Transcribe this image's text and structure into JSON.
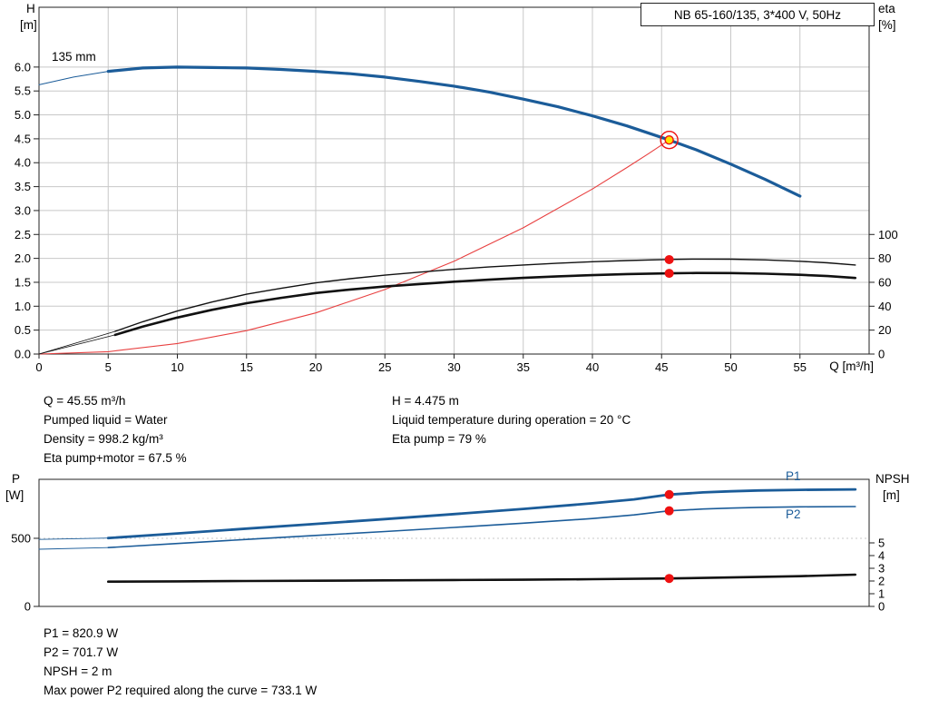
{
  "labels": {
    "h_axis_top": "H",
    "h_axis_unit": "[m]",
    "eta_axis_top": "eta",
    "eta_axis_unit": "[%]",
    "q_axis": "Q [m³/h]",
    "impeller": "135 mm",
    "p_axis_top": "P",
    "p_axis_unit": "[W]",
    "npsh_axis_top": "NPSH",
    "npsh_axis_unit": "[m]",
    "p1": "P1",
    "p2": "P2"
  },
  "info_top": {
    "col1": [
      "Q = 45.55 m³/h",
      "Pumped liquid = Water",
      "Density = 998.2 kg/m³",
      "Eta pump+motor = 67.5 %"
    ],
    "col2": [
      "H = 4.475 m",
      "Liquid temperature during operation = 20 °C",
      "Eta pump = 79 %"
    ]
  },
  "info_bottom": [
    "P1 = 820.9 W",
    "P2 = 701.7 W",
    "NPSH = 2 m",
    "Max power P2 required along the curve = 733.1 W"
  ],
  "colors": {
    "curve_blue": "#1b5c99",
    "curve_red": "#e84040",
    "curve_black": "#111111",
    "marker_red": "#ee1111",
    "marker_yellow": "#ffe000",
    "grid": "#c8c8c8",
    "frame": "#222222"
  },
  "chart_data": [
    {
      "type": "line",
      "name": "head-eta-chart",
      "title": "NB 65-160/135, 3*400 V, 50Hz",
      "show_v_grid": true,
      "show_h_grid": true,
      "show_x_labels": true,
      "x": {
        "label": "Q [m³/h]",
        "min": 0,
        "max": 60,
        "ticks": [
          0,
          5,
          10,
          15,
          20,
          25,
          30,
          35,
          40,
          45,
          50,
          55
        ]
      },
      "y_left": {
        "label": "H [m]",
        "min": 0,
        "max": 7.25,
        "decimals": 1,
        "ticks": [
          0,
          0.5,
          1,
          1.5,
          2,
          2.5,
          3,
          3.5,
          4,
          4.5,
          5,
          5.5,
          6
        ]
      },
      "y_right": {
        "label": "eta [%]",
        "h_per_unit": 0.025,
        "ticks": [
          0,
          20,
          40,
          60,
          80,
          100
        ]
      },
      "series": [
        {
          "name": "head-curve-leader",
          "axis": "left",
          "color": "blue",
          "width": 1,
          "points": [
            [
              0,
              5.63
            ],
            [
              2.5,
              5.79
            ],
            [
              5,
              5.91
            ]
          ]
        },
        {
          "name": "head-curve-135mm",
          "axis": "left",
          "color": "blue",
          "width": 3.2,
          "points": [
            [
              5,
              5.91
            ],
            [
              7.5,
              5.98
            ],
            [
              10,
              6.0
            ],
            [
              12.5,
              5.99
            ],
            [
              15,
              5.98
            ],
            [
              17.5,
              5.95
            ],
            [
              20,
              5.91
            ],
            [
              22.5,
              5.86
            ],
            [
              25,
              5.79
            ],
            [
              27.5,
              5.7
            ],
            [
              30,
              5.6
            ],
            [
              32.5,
              5.48
            ],
            [
              35,
              5.33
            ],
            [
              37.5,
              5.17
            ],
            [
              40,
              4.98
            ],
            [
              42.5,
              4.77
            ],
            [
              45.55,
              4.475
            ],
            [
              47.5,
              4.27
            ],
            [
              50,
              3.97
            ],
            [
              52.5,
              3.65
            ],
            [
              55,
              3.3
            ]
          ]
        },
        {
          "name": "system-curve",
          "axis": "left",
          "color": "red",
          "width": 1.1,
          "points": [
            [
              0,
              0
            ],
            [
              5,
              0.05
            ],
            [
              10,
              0.22
            ],
            [
              15,
              0.49
            ],
            [
              20,
              0.86
            ],
            [
              25,
              1.35
            ],
            [
              30,
              1.94
            ],
            [
              35,
              2.64
            ],
            [
              40,
              3.45
            ],
            [
              42.5,
              3.9
            ],
            [
              44,
              4.18
            ],
            [
              45.55,
              4.475
            ]
          ]
        },
        {
          "name": "eta-pump-leader",
          "axis": "right",
          "color": "black",
          "width": 0.8,
          "points": [
            [
              0,
              0
            ],
            [
              5.5,
              19
            ]
          ]
        },
        {
          "name": "eta-pump-curve",
          "axis": "right",
          "color": "black",
          "width": 1.4,
          "points": [
            [
              5.5,
              19
            ],
            [
              7.5,
              27
            ],
            [
              10,
              36
            ],
            [
              12.5,
              43.5
            ],
            [
              15,
              50
            ],
            [
              17.5,
              55
            ],
            [
              20,
              59.5
            ],
            [
              22.5,
              63
            ],
            [
              25,
              66
            ],
            [
              27.5,
              68.5
            ],
            [
              30,
              70.8
            ],
            [
              32.5,
              72.8
            ],
            [
              35,
              74.5
            ],
            [
              37.5,
              76
            ],
            [
              40,
              77.2
            ],
            [
              42.5,
              78.2
            ],
            [
              45.55,
              79.1
            ],
            [
              47.5,
              79.4
            ],
            [
              50,
              79.3
            ],
            [
              52.5,
              78.7
            ],
            [
              55,
              77.6
            ],
            [
              57,
              76.3
            ],
            [
              59,
              74.5
            ]
          ]
        },
        {
          "name": "eta-pump-motor-leader",
          "axis": "right",
          "color": "black",
          "width": 0.8,
          "points": [
            [
              0,
              0
            ],
            [
              5.5,
              16
            ]
          ]
        },
        {
          "name": "eta-pump-motor-curve",
          "axis": "right",
          "color": "black",
          "width": 2.6,
          "points": [
            [
              5.5,
              16
            ],
            [
              7.5,
              23
            ],
            [
              10,
              30.5
            ],
            [
              12.5,
              37
            ],
            [
              15,
              42.5
            ],
            [
              17.5,
              47
            ],
            [
              20,
              51
            ],
            [
              22.5,
              54
            ],
            [
              25,
              56.5
            ],
            [
              27.5,
              58.5
            ],
            [
              30,
              60.5
            ],
            [
              32.5,
              62.2
            ],
            [
              35,
              63.7
            ],
            [
              37.5,
              65
            ],
            [
              40,
              66
            ],
            [
              42.5,
              66.9
            ],
            [
              45.55,
              67.5
            ],
            [
              47.5,
              67.8
            ],
            [
              50,
              67.7
            ],
            [
              52.5,
              67.2
            ],
            [
              55,
              66.3
            ],
            [
              57,
              65.2
            ],
            [
              59,
              63.6
            ]
          ]
        }
      ],
      "markers": [
        {
          "name": "duty-point",
          "x": 45.55,
          "y": 4.475,
          "axis": "left",
          "style": "duty"
        },
        {
          "name": "eta-pump-point",
          "x": 45.55,
          "y": 79,
          "axis": "right",
          "style": "dot"
        },
        {
          "name": "eta-pump-motor-point",
          "x": 45.55,
          "y": 67.5,
          "axis": "right",
          "style": "dot"
        }
      ]
    },
    {
      "type": "line",
      "name": "power-npsh-chart",
      "show_v_grid": false,
      "show_h_grid": false,
      "show_x_labels": false,
      "h_grid_dashed": [
        500
      ],
      "x": {
        "label": "Q [m³/h]",
        "min": 0,
        "max": 60,
        "ticks": []
      },
      "y_left": {
        "label": "P [W]",
        "min": 0,
        "max": 933,
        "decimals": 0,
        "ticks": [
          0,
          500
        ]
      },
      "y_right": {
        "label": "NPSH [m]",
        "min": 0,
        "max": 10,
        "ticks": [
          0,
          1,
          2,
          3,
          4,
          5
        ]
      },
      "series": [
        {
          "name": "p1-leader",
          "axis": "left",
          "color": "blue",
          "width": 0.9,
          "points": [
            [
              0,
              492
            ],
            [
              5,
              502
            ]
          ]
        },
        {
          "name": "p1-curve",
          "axis": "left",
          "color": "blue",
          "width": 2.8,
          "points": [
            [
              5,
              502
            ],
            [
              10,
              536
            ],
            [
              15,
              571
            ],
            [
              20,
              606
            ],
            [
              25,
              641
            ],
            [
              30,
              678
            ],
            [
              35,
              716
            ],
            [
              40,
              757
            ],
            [
              43,
              786
            ],
            [
              45.55,
              821
            ],
            [
              48,
              837
            ],
            [
              50,
              845
            ],
            [
              52,
              851
            ],
            [
              55,
              856
            ],
            [
              59,
              859
            ]
          ]
        },
        {
          "name": "p2-leader",
          "axis": "left",
          "color": "blue",
          "width": 0.9,
          "points": [
            [
              0,
              420
            ],
            [
              5,
              432
            ]
          ]
        },
        {
          "name": "p2-curve",
          "axis": "left",
          "color": "blue",
          "width": 1.6,
          "points": [
            [
              5,
              432
            ],
            [
              10,
              462
            ],
            [
              15,
              492
            ],
            [
              20,
              521
            ],
            [
              25,
              550
            ],
            [
              30,
              580
            ],
            [
              35,
              611
            ],
            [
              40,
              645
            ],
            [
              43,
              672
            ],
            [
              45.55,
              702
            ],
            [
              48,
              715
            ],
            [
              50,
              722
            ],
            [
              52,
              727
            ],
            [
              55,
              731
            ],
            [
              59,
              733
            ]
          ]
        },
        {
          "name": "npsh-curve",
          "axis": "right",
          "color": "black",
          "width": 2.6,
          "points": [
            [
              5,
              1.95
            ],
            [
              10,
              1.97
            ],
            [
              15,
              2.0
            ],
            [
              20,
              2.02
            ],
            [
              25,
              2.05
            ],
            [
              30,
              2.08
            ],
            [
              35,
              2.1
            ],
            [
              40,
              2.14
            ],
            [
              45.55,
              2.2
            ],
            [
              50,
              2.28
            ],
            [
              55,
              2.38
            ],
            [
              59,
              2.5
            ]
          ]
        }
      ],
      "markers": [
        {
          "name": "p1-point",
          "x": 45.55,
          "y": 821,
          "axis": "left",
          "style": "dot"
        },
        {
          "name": "p2-point",
          "x": 45.55,
          "y": 702,
          "axis": "left",
          "style": "dot"
        },
        {
          "name": "npsh-point",
          "x": 45.55,
          "y": 2.2,
          "axis": "right",
          "style": "dot"
        }
      ]
    }
  ]
}
